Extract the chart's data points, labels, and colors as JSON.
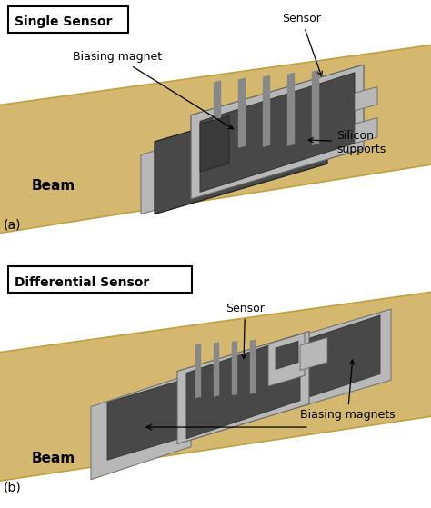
{
  "fig_width": 4.74,
  "fig_height": 5.59,
  "dpi": 100,
  "background_color": "#ffffff",
  "beam_color": "#d4b870",
  "beam_edge": "#c0a040",
  "light_gray": "#b8b8b8",
  "mid_gray": "#909090",
  "dark_gray": "#484848",
  "very_dark": "#383838",
  "coil_light": "#aaaaaa",
  "panel_a": {
    "title": "Single Sensor",
    "label": "(a)"
  },
  "panel_b": {
    "title": "Differential Sensor",
    "label": "(b)"
  }
}
